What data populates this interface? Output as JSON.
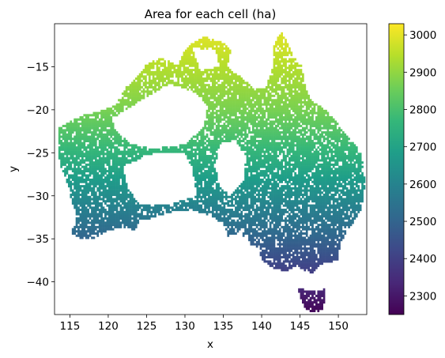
{
  "chart_data": {
    "type": "heatmap",
    "title": "Area for each cell (ha)",
    "xlabel": "x",
    "ylabel": "y",
    "xlim": [
      113.0,
      153.7
    ],
    "ylim": [
      -43.8,
      -10.0
    ],
    "xticks": [
      115,
      120,
      125,
      130,
      135,
      140,
      145,
      150
    ],
    "yticks": [
      -15,
      -20,
      -25,
      -30,
      -35,
      -40
    ],
    "colorbar": {
      "colormap": "viridis",
      "range": [
        2250,
        3030
      ],
      "ticks": [
        2300,
        2400,
        2500,
        2600,
        2700,
        2800,
        2900,
        3000
      ]
    },
    "colors": {
      "viridis": [
        "#440154",
        "#482878",
        "#3e4989",
        "#31688e",
        "#26828e",
        "#1f9e89",
        "#35b779",
        "#6ece58",
        "#b5de2b",
        "#fde725"
      ]
    },
    "value_model": {
      "description_units": "ha",
      "samples": [
        {
          "lat": -12,
          "value": 2985
        },
        {
          "lat": -20,
          "value": 2870
        },
        {
          "lat": -25,
          "value": 2760
        },
        {
          "lat": -30,
          "value": 2630
        },
        {
          "lat": -35,
          "value": 2500
        },
        {
          "lat": -38,
          "value": 2420
        },
        {
          "lat": -43,
          "value": 2270
        }
      ]
    },
    "regions": {
      "mainland": [
        [
          113.4,
          -22.0
        ],
        [
          114.2,
          -21.8
        ],
        [
          116.5,
          -20.7
        ],
        [
          118.5,
          -20.3
        ],
        [
          121.0,
          -19.5
        ],
        [
          122.2,
          -17.5
        ],
        [
          123.5,
          -16.5
        ],
        [
          125.0,
          -14.7
        ],
        [
          127.0,
          -13.9
        ],
        [
          129.0,
          -14.9
        ],
        [
          130.0,
          -13.0
        ],
        [
          131.0,
          -12.2
        ],
        [
          132.5,
          -11.5
        ],
        [
          135.0,
          -12.2
        ],
        [
          136.0,
          -13.0
        ],
        [
          135.5,
          -15.0
        ],
        [
          137.0,
          -16.0
        ],
        [
          139.0,
          -17.4
        ],
        [
          140.5,
          -17.6
        ],
        [
          141.5,
          -15.0
        ],
        [
          141.6,
          -12.5
        ],
        [
          142.5,
          -10.8
        ],
        [
          143.5,
          -12.5
        ],
        [
          144.5,
          -14.3
        ],
        [
          145.3,
          -15.0
        ],
        [
          145.5,
          -16.8
        ],
        [
          146.3,
          -18.8
        ],
        [
          148.8,
          -20.3
        ],
        [
          150.6,
          -22.5
        ],
        [
          153.0,
          -25.0
        ],
        [
          153.5,
          -28.5
        ],
        [
          153.0,
          -31.5
        ],
        [
          152.0,
          -33.0
        ],
        [
          150.8,
          -34.5
        ],
        [
          150.0,
          -36.5
        ],
        [
          150.0,
          -37.5
        ],
        [
          148.0,
          -37.8
        ],
        [
          146.5,
          -39.0
        ],
        [
          144.5,
          -38.2
        ],
        [
          143.0,
          -38.8
        ],
        [
          141.0,
          -38.2
        ],
        [
          140.0,
          -37.5
        ],
        [
          139.6,
          -36.0
        ],
        [
          138.5,
          -35.6
        ],
        [
          138.0,
          -34.5
        ],
        [
          137.5,
          -35.0
        ],
        [
          137.8,
          -33.5
        ],
        [
          136.5,
          -34.5
        ],
        [
          135.6,
          -34.8
        ],
        [
          135.2,
          -33.5
        ],
        [
          134.0,
          -32.6
        ],
        [
          132.0,
          -32.0
        ],
        [
          131.0,
          -31.6
        ],
        [
          129.0,
          -31.7
        ],
        [
          127.0,
          -32.2
        ],
        [
          124.0,
          -33.0
        ],
        [
          123.5,
          -33.9
        ],
        [
          121.0,
          -33.8
        ],
        [
          119.5,
          -34.2
        ],
        [
          118.0,
          -35.0
        ],
        [
          116.5,
          -35.0
        ],
        [
          115.1,
          -34.3
        ],
        [
          115.7,
          -33.3
        ],
        [
          115.7,
          -31.7
        ],
        [
          115.0,
          -30.0
        ],
        [
          114.9,
          -29.0
        ],
        [
          114.0,
          -27.0
        ],
        [
          113.5,
          -26.0
        ],
        [
          113.6,
          -24.5
        ]
      ],
      "tasmania": [
        [
          144.6,
          -40.7
        ],
        [
          146.5,
          -41.1
        ],
        [
          148.2,
          -40.8
        ],
        [
          148.3,
          -42.0
        ],
        [
          147.9,
          -43.2
        ],
        [
          146.8,
          -43.6
        ],
        [
          145.8,
          -43.3
        ],
        [
          145.2,
          -42.2
        ],
        [
          144.7,
          -41.2
        ]
      ],
      "interior_gaps": [
        [
          [
            120.5,
            -21.0
          ],
          [
            125.0,
            -18.5
          ],
          [
            128.0,
            -17.0
          ],
          [
            131.0,
            -17.8
          ],
          [
            133.0,
            -19.5
          ],
          [
            132.5,
            -22.0
          ],
          [
            130.0,
            -24.0
          ],
          [
            126.0,
            -24.5
          ],
          [
            123.0,
            -24.0
          ],
          [
            121.0,
            -22.5
          ]
        ],
        [
          [
            122.0,
            -26.5
          ],
          [
            126.0,
            -25.0
          ],
          [
            130.0,
            -25.0
          ],
          [
            131.0,
            -27.0
          ],
          [
            131.5,
            -30.0
          ],
          [
            128.0,
            -31.0
          ],
          [
            124.0,
            -31.0
          ],
          [
            122.5,
            -29.0
          ]
        ],
        [
          [
            134.5,
            -24.0
          ],
          [
            136.5,
            -23.5
          ],
          [
            138.0,
            -25.5
          ],
          [
            137.5,
            -28.5
          ],
          [
            136.0,
            -30.0
          ],
          [
            134.5,
            -29.0
          ],
          [
            134.0,
            -26.5
          ]
        ],
        [
          [
            131.0,
            -12.8
          ],
          [
            134.0,
            -13.0
          ],
          [
            134.5,
            -15.0
          ],
          [
            132.0,
            -15.5
          ]
        ]
      ],
      "gap_fraction": 0.15
    }
  }
}
